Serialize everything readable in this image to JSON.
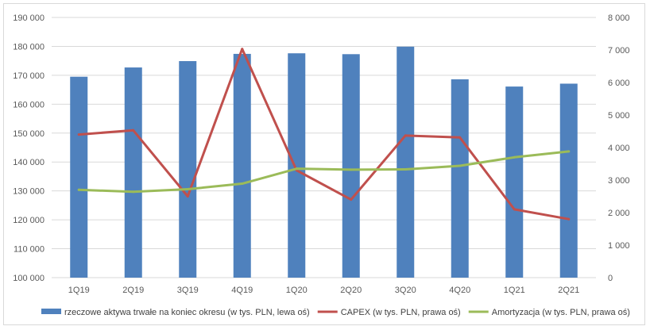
{
  "chart_data": {
    "type": "bar",
    "categories": [
      "1Q19",
      "2Q19",
      "3Q19",
      "4Q19",
      "1Q20",
      "2Q20",
      "3Q20",
      "4Q20",
      "1Q21",
      "2Q21"
    ],
    "series": [
      {
        "name": "rzeczowe aktywa trwałe na koniec okresu (w tys. PLN, lewa oś)",
        "type": "bar",
        "axis": "left",
        "color": "#4f81bd",
        "values": [
          169500,
          172700,
          174900,
          177400,
          177600,
          177300,
          179900,
          168600,
          166100,
          167100
        ]
      },
      {
        "name": "CAPEX (w tys. PLN, prawa oś)",
        "type": "line",
        "axis": "right",
        "color": "#c0504d",
        "values": [
          4400,
          4530,
          2500,
          7030,
          3300,
          2400,
          4370,
          4310,
          2100,
          1800
        ]
      },
      {
        "name": "Amortyzacja (w tys. PLN, prawa oś)",
        "type": "line",
        "axis": "right",
        "color": "#9bbb59",
        "values": [
          2700,
          2640,
          2720,
          2890,
          3350,
          3320,
          3330,
          3440,
          3700,
          3880
        ]
      }
    ],
    "y_left": {
      "min": 100000,
      "max": 190000,
      "step": 10000,
      "tick_labels": [
        "100 000",
        "110 000",
        "120 000",
        "130 000",
        "140 000",
        "150 000",
        "160 000",
        "170 000",
        "180 000",
        "190 000"
      ]
    },
    "y_right": {
      "min": 0,
      "max": 8000,
      "step": 1000,
      "tick_labels": [
        "0",
        "1 000",
        "2 000",
        "3 000",
        "4 000",
        "5 000",
        "6 000",
        "7 000",
        "8 000"
      ]
    },
    "grid": true,
    "legend_position": "bottom",
    "colors": {
      "gridline": "#d9d9d9",
      "tick_text": "#595959"
    }
  }
}
